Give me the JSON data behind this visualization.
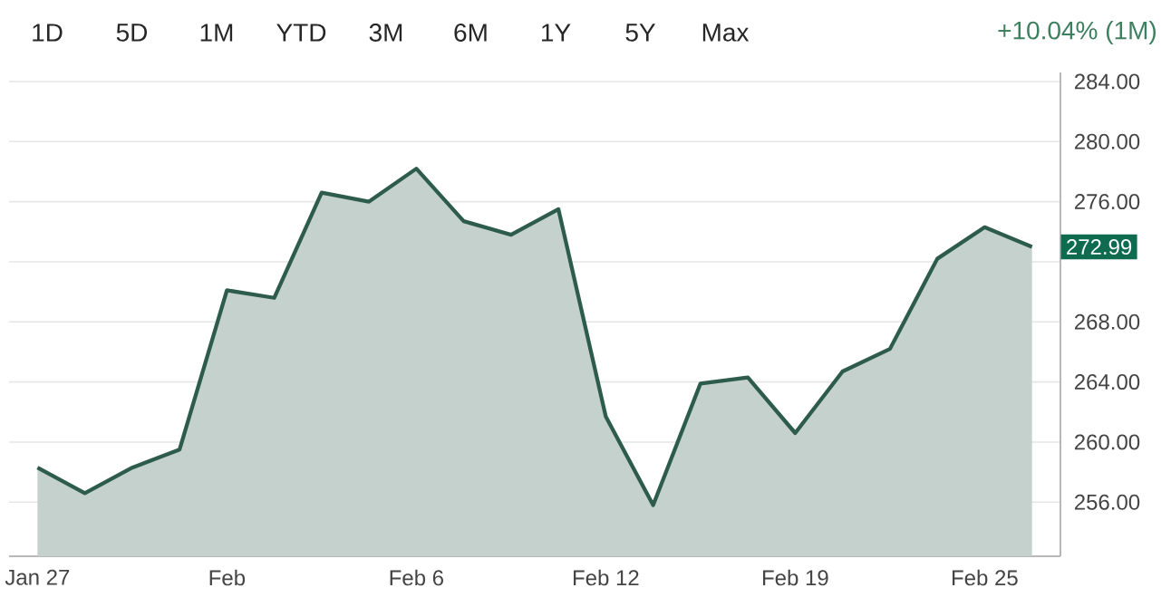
{
  "chart_data": {
    "type": "area",
    "color": "#2e5c4c",
    "categories": [
      "Jan 27",
      null,
      null,
      null,
      "Feb",
      null,
      null,
      null,
      "Feb 6",
      null,
      null,
      null,
      "Feb 12",
      null,
      null,
      null,
      "Feb 19",
      null,
      null,
      null,
      "Feb 25",
      null
    ],
    "values": [
      258.3,
      256.6,
      258.3,
      259.5,
      270.1,
      269.6,
      276.6,
      276.0,
      278.2,
      274.7,
      273.8,
      275.5,
      261.7,
      255.8,
      263.9,
      264.3,
      260.6,
      264.7,
      266.2,
      272.2,
      274.3,
      272.99
    ],
    "ylim": [
      252.4,
      284.6
    ],
    "yticks": [
      {
        "value": 256,
        "label": "256.00"
      },
      {
        "value": 260,
        "label": "260.00"
      },
      {
        "value": 264,
        "label": "264.00"
      },
      {
        "value": 268,
        "label": "268.00"
      },
      {
        "value": 272,
        "label": null
      },
      {
        "value": 276,
        "label": "276.00"
      },
      {
        "value": 280,
        "label": "280.00"
      },
      {
        "value": 284,
        "label": "284.00"
      }
    ],
    "grid": "y",
    "annotations": [
      "1D",
      "5D",
      "1M",
      "YTD",
      "3M",
      "6M",
      "1Y",
      "5Y",
      "Max",
      "+10.04% (1M)",
      "272.99"
    ]
  }
}
